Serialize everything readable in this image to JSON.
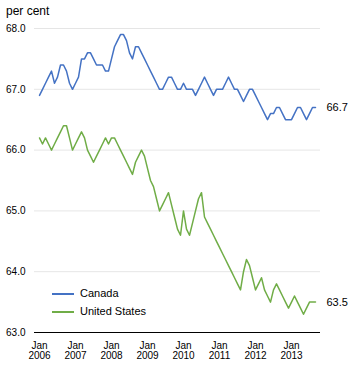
{
  "chart_data": {
    "type": "line",
    "title": "per cent",
    "categories": [
      "Jan\n2006",
      null,
      null,
      null,
      null,
      null,
      null,
      null,
      null,
      null,
      null,
      null,
      "Jan\n2007",
      null,
      null,
      null,
      null,
      null,
      null,
      null,
      null,
      null,
      null,
      null,
      "Jan\n2008",
      null,
      null,
      null,
      null,
      null,
      null,
      null,
      null,
      null,
      null,
      null,
      "Jan\n2009",
      null,
      null,
      null,
      null,
      null,
      null,
      null,
      null,
      null,
      null,
      null,
      "Jan\n2010",
      null,
      null,
      null,
      null,
      null,
      null,
      null,
      null,
      null,
      null,
      null,
      "Jan\n2011",
      null,
      null,
      null,
      null,
      null,
      null,
      null,
      null,
      null,
      null,
      null,
      "Jan\n2012",
      null,
      null,
      null,
      null,
      null,
      null,
      null,
      null,
      null,
      null,
      null,
      "Jan\n2013",
      null,
      null,
      null,
      null,
      null,
      null,
      null,
      null
    ],
    "series": [
      {
        "name": "Canada",
        "color": "#4472C4",
        "values": [
          66.9,
          67.0,
          67.1,
          67.2,
          67.3,
          67.1,
          67.2,
          67.4,
          67.4,
          67.3,
          67.1,
          67.0,
          67.1,
          67.2,
          67.5,
          67.5,
          67.6,
          67.6,
          67.5,
          67.4,
          67.4,
          67.4,
          67.3,
          67.3,
          67.5,
          67.7,
          67.8,
          67.9,
          67.9,
          67.8,
          67.6,
          67.5,
          67.7,
          67.7,
          67.6,
          67.5,
          67.4,
          67.3,
          67.2,
          67.1,
          67.0,
          67.0,
          67.1,
          67.2,
          67.2,
          67.1,
          67.0,
          67.0,
          67.1,
          67.0,
          67.0,
          67.0,
          66.9,
          67.0,
          67.1,
          67.2,
          67.1,
          67.0,
          66.9,
          67.0,
          67.0,
          67.0,
          67.1,
          67.2,
          67.1,
          67.0,
          67.0,
          66.9,
          66.8,
          66.9,
          67.0,
          67.0,
          66.9,
          66.8,
          66.7,
          66.6,
          66.5,
          66.6,
          66.6,
          66.7,
          66.7,
          66.6,
          66.5,
          66.5,
          66.5,
          66.6,
          66.7,
          66.7,
          66.6,
          66.5,
          66.6,
          66.7,
          66.7
        ]
      },
      {
        "name": "United States",
        "color": "#70AD47",
        "values": [
          66.2,
          66.1,
          66.2,
          66.1,
          66.0,
          66.1,
          66.2,
          66.3,
          66.4,
          66.4,
          66.2,
          66.0,
          66.1,
          66.2,
          66.3,
          66.2,
          66.0,
          65.9,
          65.8,
          65.9,
          66.0,
          66.1,
          66.2,
          66.1,
          66.2,
          66.2,
          66.1,
          66.0,
          65.9,
          65.8,
          65.7,
          65.6,
          65.8,
          65.9,
          66.0,
          65.9,
          65.7,
          65.5,
          65.4,
          65.2,
          65.0,
          65.1,
          65.2,
          65.3,
          65.1,
          64.9,
          64.7,
          64.6,
          65.0,
          64.7,
          64.6,
          64.8,
          65.0,
          65.2,
          65.3,
          64.9,
          64.8,
          64.7,
          64.6,
          64.5,
          64.4,
          64.3,
          64.2,
          64.1,
          64.0,
          63.9,
          63.8,
          63.7,
          64.0,
          64.2,
          64.1,
          63.9,
          63.7,
          63.8,
          63.9,
          63.7,
          63.6,
          63.5,
          63.7,
          63.8,
          63.7,
          63.6,
          63.5,
          63.4,
          63.5,
          63.6,
          63.5,
          63.4,
          63.3,
          63.4,
          63.5,
          63.5,
          63.5
        ]
      }
    ],
    "annotations": [
      {
        "text": "66.7",
        "y": 66.7
      },
      {
        "text": "63.5",
        "y": 63.5
      }
    ],
    "ylim": [
      63,
      68
    ],
    "yticks": [
      63,
      64,
      65,
      66,
      67,
      68
    ],
    "grid": true,
    "legend": "lower left"
  }
}
